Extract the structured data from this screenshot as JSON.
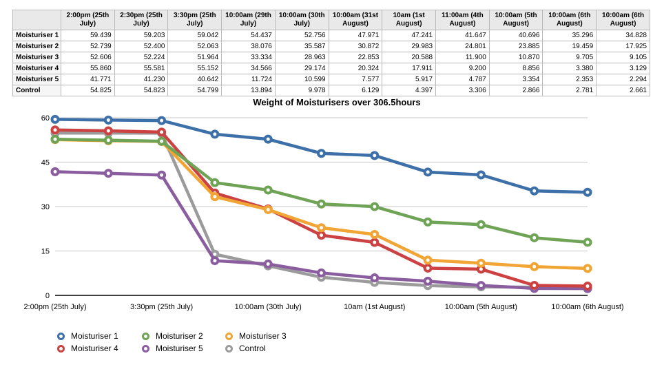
{
  "table": {
    "corner_label": "",
    "columns": [
      "2:00pm (25th July)",
      "2:30pm (25th July)",
      "3:30pm (25th July)",
      "10:00am (29th July)",
      "10:00am (30th July)",
      "10:00am (31st August)",
      "10am (1st August)",
      "11:00am (4th August)",
      "10:00am (5th August)",
      "10:00am (6th August)",
      "10:00am (6th August)"
    ],
    "rows": [
      {
        "label": "Moisturiser 1",
        "values": [
          "59.439",
          "59.203",
          "59.042",
          "54.437",
          "52.756",
          "47.971",
          "47.241",
          "41.647",
          "40.696",
          "35.296",
          "34.828"
        ]
      },
      {
        "label": "Moisturiser 2",
        "values": [
          "52.739",
          "52.400",
          "52.063",
          "38.076",
          "35.587",
          "30.872",
          "29.983",
          "24.801",
          "23.885",
          "19.459",
          "17.925"
        ]
      },
      {
        "label": "Moisturiser 3",
        "values": [
          "52.606",
          "52.224",
          "51.964",
          "33.334",
          "28.963",
          "22.853",
          "20.588",
          "11.900",
          "10.870",
          "9.705",
          "9.105"
        ]
      },
      {
        "label": "Moisturiser 4",
        "values": [
          "55.860",
          "55.581",
          "55.152",
          "34.566",
          "29.174",
          "20.324",
          "17.911",
          "9.200",
          "8.856",
          "3.380",
          "3.129"
        ]
      },
      {
        "label": "Moisturiser 5",
        "values": [
          "41.771",
          "41.230",
          "40.642",
          "11.724",
          "10.599",
          "7.577",
          "5.917",
          "4.787",
          "3.354",
          "2.353",
          "2.294"
        ]
      },
      {
        "label": "Control",
        "values": [
          "54.825",
          "54.823",
          "54.799",
          "13.894",
          "9.978",
          "6.129",
          "4.397",
          "3.306",
          "2.866",
          "2.781",
          "2.661"
        ]
      }
    ]
  },
  "chart_data": {
    "type": "line",
    "title": "Weight of Moisturisers over 306.5hours",
    "categories": [
      "2:00pm (25th July)",
      "2:30pm (25th July)",
      "3:30pm (25th July)",
      "10:00am (29th July)",
      "10:00am (30th July)",
      "10:00am (31st August)",
      "10am (1st August)",
      "11:00am (4th August)",
      "10:00am (5th August)",
      "10:00am (6th August)",
      "10:00am (6th August)"
    ],
    "x_tick_every": 2,
    "yticks": [
      0,
      15,
      30,
      45,
      60
    ],
    "ylim": [
      0,
      60
    ],
    "grid": true,
    "legend_position": "bottom",
    "series": [
      {
        "name": "Moisturiser 1",
        "color": "#3d6fa8",
        "values": [
          59.439,
          59.203,
          59.042,
          54.437,
          52.756,
          47.971,
          47.241,
          41.647,
          40.696,
          35.296,
          34.828
        ]
      },
      {
        "name": "Moisturiser 2",
        "color": "#6fa356",
        "values": [
          52.739,
          52.4,
          52.063,
          38.076,
          35.587,
          30.872,
          29.983,
          24.801,
          23.885,
          19.459,
          17.925
        ]
      },
      {
        "name": "Moisturiser 3",
        "color": "#f0a535",
        "values": [
          52.606,
          52.224,
          51.964,
          33.334,
          28.963,
          22.853,
          20.588,
          11.9,
          10.87,
          9.705,
          9.105
        ]
      },
      {
        "name": "Moisturiser 4",
        "color": "#cc4141",
        "values": [
          55.86,
          55.581,
          55.152,
          34.566,
          29.174,
          20.324,
          17.911,
          9.2,
          8.856,
          3.38,
          3.129
        ]
      },
      {
        "name": "Moisturiser 5",
        "color": "#8a5d9f",
        "values": [
          41.771,
          41.23,
          40.642,
          11.724,
          10.599,
          7.577,
          5.917,
          4.787,
          3.354,
          2.353,
          2.294
        ]
      },
      {
        "name": "Control",
        "color": "#9b9b9b",
        "values": [
          54.825,
          54.823,
          54.799,
          13.894,
          9.978,
          6.129,
          4.397,
          3.306,
          2.866,
          2.781,
          2.661
        ]
      }
    ],
    "grid_color": "#c9c9c9",
    "axis_color": "#000000"
  }
}
